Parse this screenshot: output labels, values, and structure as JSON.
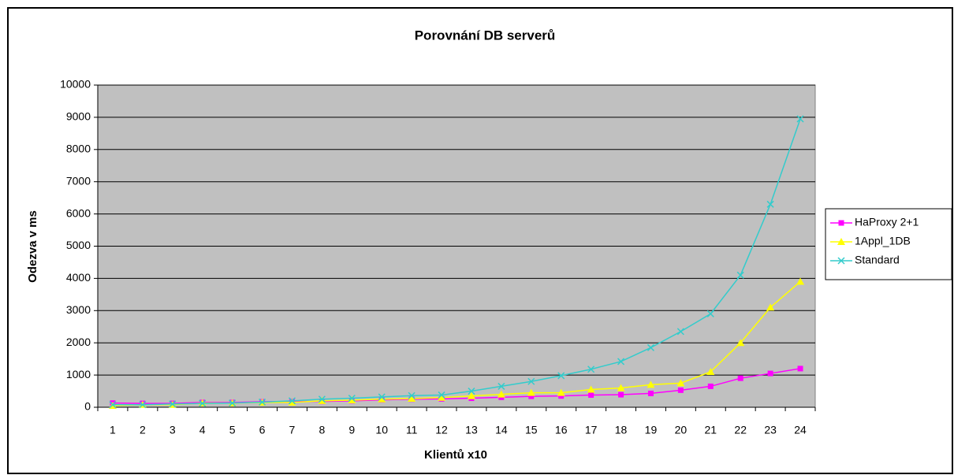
{
  "chart_data": {
    "type": "line",
    "title": "Porovnání DB serverů",
    "xlabel": "Klientů  x10",
    "ylabel": "Odezva v ms",
    "categories": [
      "1",
      "2",
      "3",
      "4",
      "5",
      "6",
      "7",
      "8",
      "9",
      "10",
      "11",
      "12",
      "13",
      "14",
      "15",
      "16",
      "17",
      "18",
      "19",
      "20",
      "21",
      "22",
      "23",
      "24"
    ],
    "series": [
      {
        "name": "HaProxy 2+1",
        "color": "#ff00ff",
        "marker": "square",
        "values": [
          130,
          120,
          120,
          150,
          150,
          170,
          180,
          180,
          200,
          230,
          250,
          260,
          280,
          310,
          340,
          350,
          380,
          390,
          430,
          530,
          650,
          900,
          1050,
          1200
        ]
      },
      {
        "name": "1Appl_1DB",
        "color": "#ffff00",
        "marker": "triangle",
        "values": [
          50,
          80,
          80,
          130,
          130,
          150,
          150,
          200,
          220,
          250,
          270,
          300,
          350,
          400,
          450,
          450,
          550,
          600,
          700,
          750,
          1100,
          2000,
          3100,
          3900
        ]
      },
      {
        "name": "Standard",
        "color": "#33cccc",
        "marker": "x",
        "values": [
          80,
          80,
          100,
          120,
          130,
          160,
          200,
          250,
          280,
          320,
          360,
          380,
          500,
          650,
          800,
          980,
          1180,
          1420,
          1850,
          2350,
          2900,
          4100,
          6300,
          8950
        ]
      }
    ],
    "ylim": [
      0,
      10000
    ],
    "yticks": [
      0,
      1000,
      2000,
      3000,
      4000,
      5000,
      6000,
      7000,
      8000,
      9000,
      10000
    ],
    "grid": true,
    "legend": "right"
  }
}
